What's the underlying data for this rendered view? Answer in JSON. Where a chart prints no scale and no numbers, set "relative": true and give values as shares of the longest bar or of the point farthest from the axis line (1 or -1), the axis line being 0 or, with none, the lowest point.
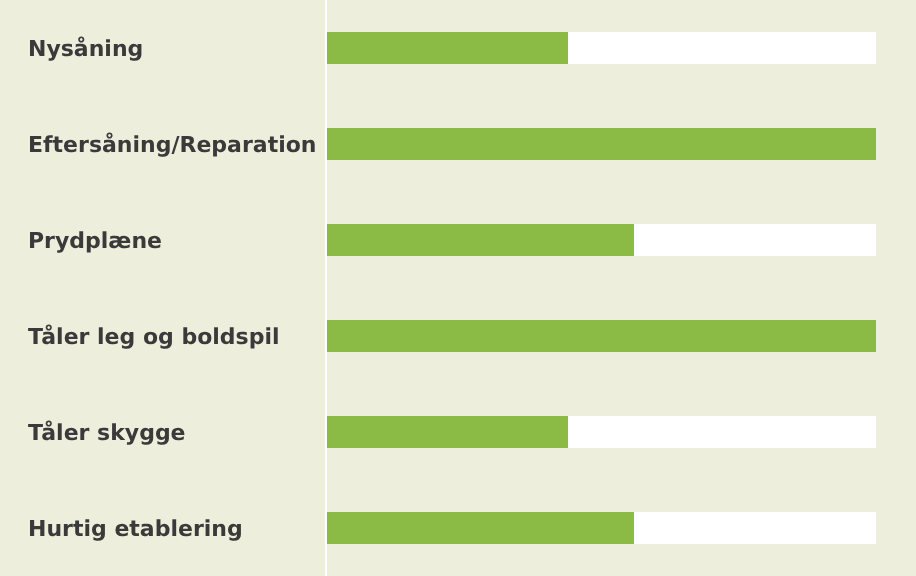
{
  "chart_data": {
    "type": "bar",
    "orientation": "horizontal",
    "relative": true,
    "categories": [
      "Nysåning",
      "Eftersåning/Reparation",
      "Prydplæne",
      "Tåler leg og boldspil",
      "Tåler skygge",
      "Hurtig etablering"
    ],
    "values": [
      0.44,
      1,
      0.56,
      1,
      0.44,
      0.56
    ],
    "color": "#8bba45"
  }
}
